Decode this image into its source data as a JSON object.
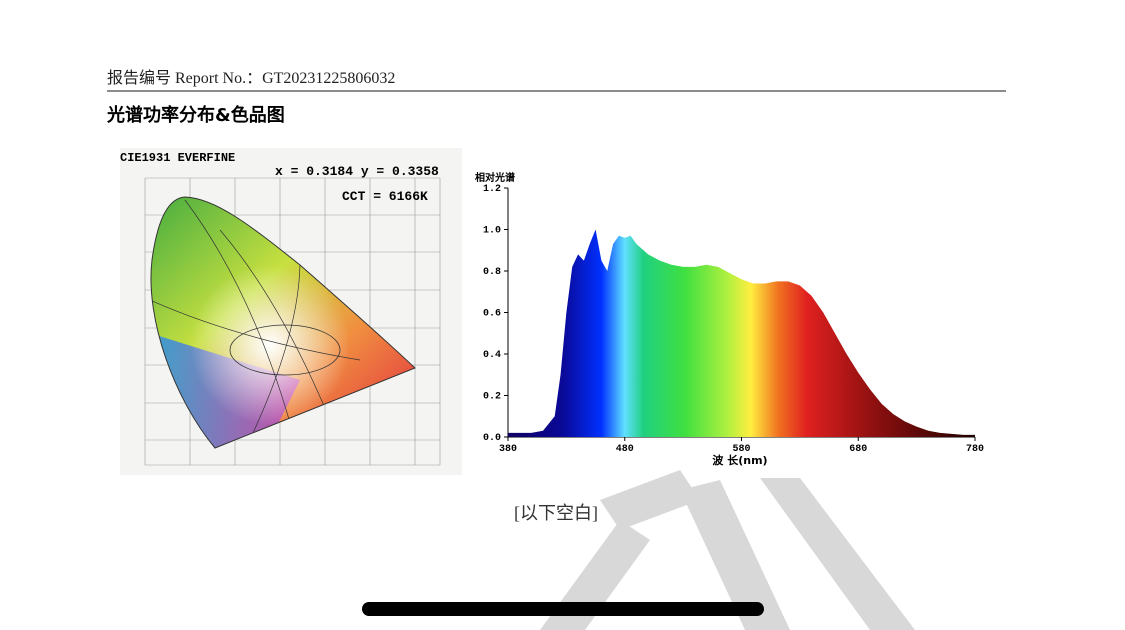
{
  "header": {
    "report_no": "报告编号 Report No.：GT20231225806032"
  },
  "section_title": "光谱功率分布&色品图",
  "cie_diagram": {
    "title": "CIE1931  EVERFINE",
    "coordinates": "x = 0.3184 y = 0.3358",
    "cct": "CCT = 6166K"
  },
  "chart_data": {
    "type": "area",
    "y_label": "相对光谱",
    "x_label": "波 长(nm)",
    "x": [
      380,
      400,
      410,
      420,
      425,
      430,
      435,
      440,
      445,
      450,
      455,
      460,
      465,
      470,
      475,
      480,
      485,
      490,
      500,
      510,
      520,
      530,
      540,
      550,
      560,
      570,
      580,
      590,
      600,
      610,
      620,
      630,
      640,
      650,
      660,
      670,
      680,
      690,
      700,
      710,
      720,
      730,
      740,
      750,
      760,
      770,
      780
    ],
    "values": [
      0.02,
      0.02,
      0.03,
      0.1,
      0.3,
      0.6,
      0.82,
      0.88,
      0.85,
      0.93,
      1.0,
      0.85,
      0.8,
      0.93,
      0.97,
      0.96,
      0.97,
      0.93,
      0.88,
      0.85,
      0.83,
      0.82,
      0.82,
      0.83,
      0.82,
      0.79,
      0.76,
      0.74,
      0.74,
      0.75,
      0.75,
      0.73,
      0.68,
      0.6,
      0.5,
      0.4,
      0.31,
      0.23,
      0.16,
      0.11,
      0.075,
      0.05,
      0.03,
      0.02,
      0.015,
      0.01,
      0.01
    ],
    "xlim": [
      380,
      780
    ],
    "xticks": [
      380,
      480,
      580,
      680,
      780
    ],
    "ylim": [
      0,
      1.2
    ],
    "yticks": [
      {
        "value": 0,
        "label": "0.0"
      },
      0.2,
      0.4,
      0.6,
      0.8,
      {
        "value": 1,
        "label": "1.0"
      },
      1.2
    ]
  },
  "footer": "[以下空白]"
}
